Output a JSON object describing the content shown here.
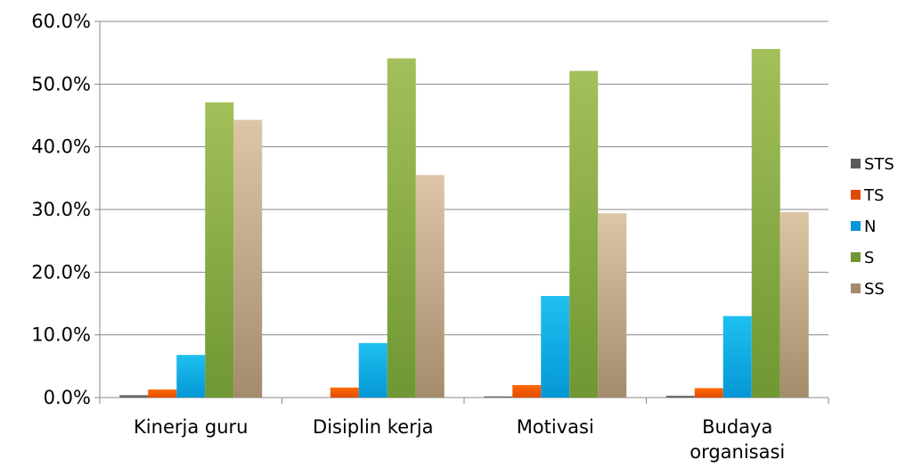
{
  "chart_data": {
    "type": "bar",
    "title": "",
    "xlabel": "",
    "ylabel": "",
    "ylim": [
      0,
      60
    ],
    "y_ticks": [
      "0.0%",
      "10.0%",
      "20.0%",
      "30.0%",
      "40.0%",
      "50.0%",
      "60.0%"
    ],
    "y_tick_values": [
      0,
      10,
      20,
      30,
      40,
      50,
      60
    ],
    "grid": true,
    "legend_position": "right",
    "categories": [
      [
        "Kinerja guru"
      ],
      [
        "Disiplin kerja"
      ],
      [
        "Motivasi"
      ],
      [
        "Budaya",
        "organisasi"
      ]
    ],
    "series": [
      {
        "name": "STS",
        "color": "#7f7f7f",
        "color_dark": "#5a5a5a",
        "values": [
          0.4,
          0.0,
          0.2,
          0.3
        ]
      },
      {
        "name": "TS",
        "color": "#ff6a00",
        "color_dark": "#e04a00",
        "values": [
          1.3,
          1.6,
          2.0,
          1.5
        ]
      },
      {
        "name": "N",
        "color": "#1ec0f0",
        "color_dark": "#0597d6",
        "values": [
          6.8,
          8.7,
          16.2,
          13.0
        ]
      },
      {
        "name": "S",
        "color": "#a3c05a",
        "color_dark": "#6f9733",
        "values": [
          47.1,
          54.1,
          52.1,
          55.6
        ]
      },
      {
        "name": "SS",
        "color": "#dcc6a6",
        "color_dark": "#a48b6b",
        "values": [
          44.3,
          35.5,
          29.4,
          29.6
        ]
      }
    ]
  }
}
